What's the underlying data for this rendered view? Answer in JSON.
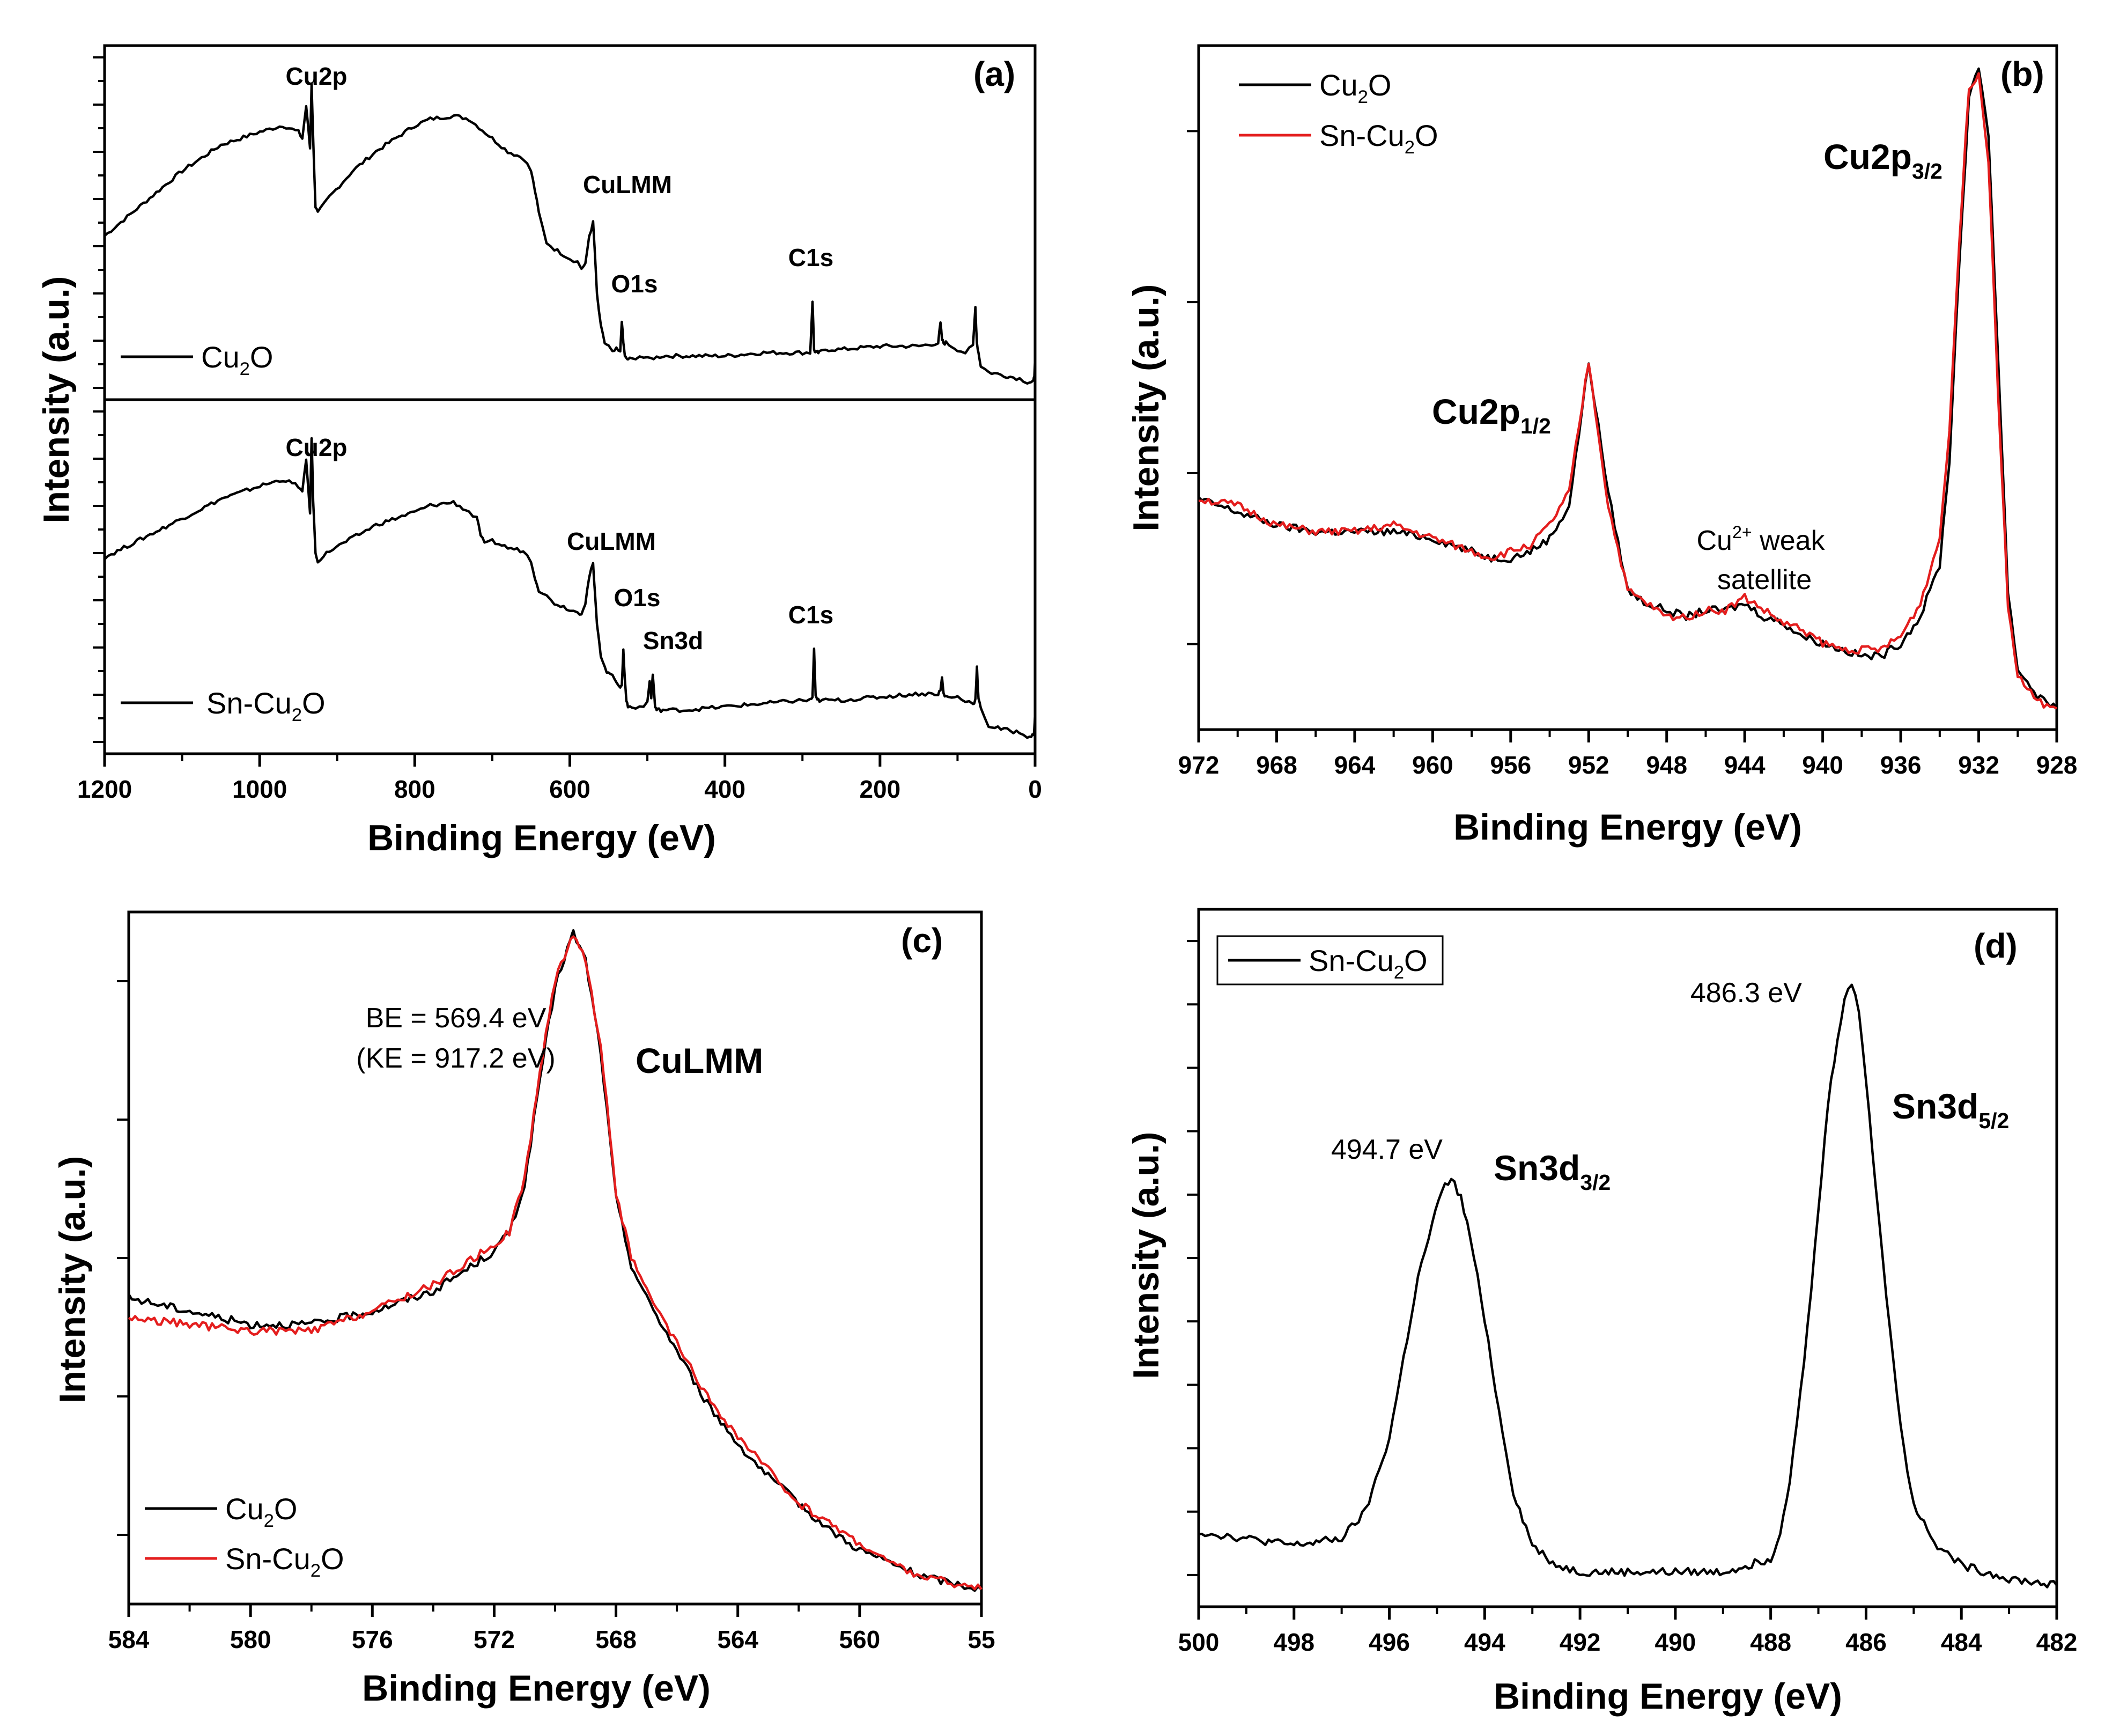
{
  "figure": {
    "colors": {
      "cu2o": "#000000",
      "sn_cu2o": "#e41e1e",
      "axis": "#000000"
    }
  },
  "chart_data": [
    {
      "panel": "a",
      "type": "line",
      "panel_label": "(a)",
      "xlabel": "Binding Energy (eV)",
      "ylabel": "Intensity (a.u.)",
      "xlim": [
        1200,
        0
      ],
      "xticks": [
        1200,
        1000,
        800,
        600,
        400,
        200,
        0
      ],
      "stacked": true,
      "series": [
        {
          "name": "Cu2O",
          "legend": {
            "base": "Cu",
            "sub": "2",
            "rest": "O"
          },
          "color": "#000000",
          "ylim": [
            0,
            100
          ],
          "x": [
            1200,
            1150,
            1100,
            1050,
            1000,
            970,
            950,
            945,
            940,
            935,
            933,
            931,
            928,
            925,
            910,
            880,
            850,
            800,
            780,
            750,
            730,
            700,
            680,
            660,
            650,
            645,
            640,
            630,
            620,
            600,
            590,
            585,
            580,
            575,
            570,
            568,
            565,
            560,
            555,
            550,
            545,
            540,
            535,
            533,
            531,
            529,
            527,
            525,
            520,
            510,
            500,
            480,
            450,
            400,
            350,
            300,
            290,
            287,
            285,
            283,
            281,
            278,
            270,
            250,
            200,
            150,
            125,
            122,
            120,
            118,
            115,
            100,
            90,
            80,
            77,
            75,
            73,
            70,
            60,
            40,
            20,
            10,
            5,
            2,
            1,
            0
          ],
          "values": [
            48,
            58,
            68,
            76,
            80,
            82,
            80,
            78,
            88,
            75,
            95,
            78,
            57,
            55,
            60,
            68,
            74,
            82,
            84,
            85,
            84,
            78,
            74,
            72,
            68,
            62,
            55,
            46,
            44,
            41,
            40,
            38,
            39,
            48,
            52,
            44,
            30,
            20,
            15,
            14,
            12,
            13,
            12,
            22,
            15,
            11,
            10,
            10,
            10,
            11,
            10,
            11,
            11,
            11,
            12,
            12,
            12,
            28,
            13,
            12,
            12,
            12,
            13,
            13,
            14,
            14,
            15,
            21,
            16,
            15,
            15,
            13,
            12,
            14,
            26,
            15,
            12,
            8,
            6,
            5,
            4,
            3,
            3,
            3,
            5,
            10
          ]
        },
        {
          "name": "Sn-Cu2O",
          "legend": {
            "base": "Sn-Cu",
            "sub": "2",
            "rest": "O"
          },
          "color": "#000000",
          "ylim": [
            0,
            100
          ],
          "x": [
            1200,
            1150,
            1100,
            1050,
            1000,
            970,
            950,
            945,
            940,
            935,
            933,
            931,
            928,
            925,
            910,
            880,
            850,
            800,
            780,
            750,
            730,
            720,
            715,
            710,
            700,
            680,
            660,
            650,
            645,
            640,
            630,
            620,
            600,
            590,
            585,
            580,
            575,
            570,
            568,
            565,
            560,
            555,
            550,
            545,
            540,
            535,
            533,
            531,
            529,
            527,
            525,
            520,
            510,
            500,
            497,
            495,
            493,
            490,
            488,
            485,
            480,
            450,
            400,
            350,
            300,
            290,
            287,
            285,
            283,
            281,
            278,
            270,
            250,
            200,
            150,
            125,
            122,
            120,
            118,
            115,
            100,
            90,
            80,
            77,
            75,
            73,
            70,
            60,
            40,
            20,
            10,
            5,
            2,
            1,
            0
          ],
          "values": [
            58,
            64,
            70,
            76,
            80,
            82,
            80,
            78,
            88,
            72,
            95,
            76,
            59,
            57,
            60,
            64,
            68,
            72,
            74,
            75,
            72,
            70,
            65,
            62,
            63,
            61,
            60,
            57,
            52,
            48,
            46,
            44,
            42,
            41,
            41,
            44,
            52,
            56,
            48,
            38,
            28,
            24,
            22,
            22,
            20,
            18,
            18,
            30,
            20,
            14,
            12,
            12,
            12,
            13,
            20,
            15,
            22,
            12,
            11,
            11,
            11,
            11,
            12,
            13,
            14,
            14,
            15,
            30,
            15,
            14,
            14,
            14,
            14,
            15,
            16,
            16,
            17,
            21,
            16,
            15,
            15,
            14,
            13,
            14,
            24,
            14,
            12,
            6,
            5,
            4,
            3,
            3,
            3,
            5,
            10
          ]
        }
      ],
      "annotations": {
        "top": [
          "Cu2p",
          "CuLMM",
          "O1s",
          "C1s"
        ],
        "bottom": [
          "Cu2p",
          "CuLMM",
          "O1s",
          "Sn3d",
          "C1s"
        ]
      }
    },
    {
      "panel": "b",
      "type": "line",
      "panel_label": "(b)",
      "xlabel": "Binding Energy (eV)",
      "ylabel": "Intensity (a.u.)",
      "xlim": [
        972,
        928
      ],
      "xticks": [
        972,
        968,
        964,
        960,
        956,
        952,
        948,
        944,
        940,
        936,
        932,
        928
      ],
      "ylim": [
        0,
        100
      ],
      "series": [
        {
          "name": "Cu2O",
          "legend": {
            "base": "Cu",
            "sub": "2",
            "rest": "O"
          },
          "color": "#000000",
          "x": [
            972,
            970,
            968,
            966,
            964,
            962,
            960,
            958,
            957,
            956,
            955,
            954,
            953,
            952.5,
            952,
            951.5,
            951,
            950,
            949,
            948,
            947,
            946,
            945,
            944,
            943,
            942,
            941,
            940,
            939,
            938,
            937,
            936,
            935,
            934,
            933.5,
            933,
            932.5,
            932,
            931.5,
            931,
            930.5,
            930,
            929,
            928
          ],
          "values": [
            34,
            32,
            30,
            29,
            29,
            29,
            28,
            26,
            25,
            25,
            26,
            28,
            33,
            44,
            55,
            45,
            35,
            20,
            18,
            17,
            16,
            17,
            17,
            18,
            16,
            15,
            13,
            12,
            11,
            10,
            10,
            12,
            16,
            24,
            40,
            70,
            95,
            100,
            90,
            55,
            20,
            8,
            4,
            2
          ]
        },
        {
          "name": "Sn-Cu2O",
          "legend": {
            "base": "Sn-Cu",
            "sub": "2",
            "rest": "O"
          },
          "color": "#e41e1e",
          "x": [
            972,
            970,
            968,
            966,
            964,
            962,
            960,
            958,
            957,
            956,
            955,
            954,
            953,
            952.5,
            952,
            951.5,
            951,
            950,
            949,
            948,
            947,
            946,
            945,
            944,
            943,
            942,
            941,
            940,
            939,
            938,
            937,
            936,
            935,
            934,
            933.5,
            933,
            932.5,
            932,
            931.5,
            931,
            930.5,
            930,
            929,
            928
          ],
          "values": [
            34,
            33,
            30,
            29,
            29,
            30,
            28,
            26,
            25,
            26,
            27,
            30,
            35,
            45,
            55,
            44,
            33,
            20,
            18,
            16,
            16,
            17,
            17,
            19,
            17,
            15,
            14,
            12,
            11,
            11,
            11,
            13,
            18,
            28,
            45,
            73,
            97,
            99,
            86,
            50,
            18,
            7,
            3,
            2
          ]
        }
      ],
      "annotations": {
        "p12": {
          "main": "Cu2p",
          "sub": "1/2"
        },
        "p32": {
          "main": "Cu2p",
          "sub": "3/2"
        },
        "satellite_line1": {
          "pre": "Cu",
          "sup": "2+",
          "post": " weak"
        },
        "satellite_line2": "satellite"
      }
    },
    {
      "panel": "c",
      "type": "line",
      "panel_label": "(c)",
      "xlabel": "Binding Energy (eV)",
      "ylabel": "Intensity (a.u.)",
      "xlim": [
        584,
        556
      ],
      "xticks": [
        584,
        580,
        576,
        572,
        568,
        564,
        560,
        "55"
      ],
      "ylim": [
        0,
        100
      ],
      "series": [
        {
          "name": "Cu2O",
          "legend": {
            "base": "Cu",
            "sub": "2",
            "rest": "O"
          },
          "color": "#000000",
          "x": [
            584,
            582,
            580,
            578,
            576,
            574,
            573,
            572,
            571.5,
            571,
            570.5,
            570,
            569.5,
            569.4,
            569,
            568.5,
            568,
            567.5,
            567,
            566,
            565,
            564,
            563,
            562,
            561,
            560,
            559,
            558,
            557,
            556
          ],
          "values": [
            45,
            43,
            41,
            41,
            43,
            46,
            49,
            52,
            55,
            62,
            78,
            92,
            99,
            100,
            96,
            82,
            60,
            50,
            45,
            37,
            29,
            23,
            18,
            14,
            10,
            7,
            5,
            3,
            2,
            1
          ]
        },
        {
          "name": "Sn-Cu2O",
          "legend": {
            "base": "Sn-Cu",
            "sub": "2",
            "rest": "O"
          },
          "color": "#e41e1e",
          "x": [
            584,
            582,
            580,
            578,
            576,
            574,
            573,
            572,
            571.5,
            571,
            570.5,
            570,
            569.5,
            569.4,
            569,
            568.5,
            568,
            567.5,
            567,
            566,
            565,
            564,
            563,
            562,
            561,
            560,
            559,
            558,
            557,
            556
          ],
          "values": [
            42,
            41,
            40,
            40,
            43,
            47,
            50,
            53,
            55,
            63,
            79,
            93,
            99,
            100,
            96,
            83,
            61,
            51,
            46,
            38,
            30,
            24,
            19,
            14,
            11,
            8,
            5,
            3,
            2,
            1
          ]
        }
      ],
      "annotations": {
        "be": "BE = 569.4 eV",
        "ke": "(KE = 917.2 eV)",
        "culmm": "CuLMM"
      }
    },
    {
      "panel": "d",
      "type": "line",
      "panel_label": "(d)",
      "xlabel": "Binding Energy (eV)",
      "ylabel": "Intensity (a.u.)",
      "xlim": [
        500,
        482
      ],
      "xticks": [
        500,
        498,
        496,
        494,
        492,
        490,
        488,
        486,
        484,
        482
      ],
      "ylim": [
        0,
        100
      ],
      "series": [
        {
          "name": "Sn-Cu2O",
          "legend": {
            "base": "Sn-Cu",
            "sub": "2",
            "rest": "O"
          },
          "color": "#000000",
          "x": [
            500,
            499,
            498,
            497,
            496.5,
            496,
            495.7,
            495.4,
            495.1,
            494.9,
            494.7,
            494.5,
            494.3,
            494,
            493.7,
            493.4,
            493,
            492.5,
            492,
            491,
            490,
            489,
            488,
            487.8,
            487.6,
            487.3,
            487,
            486.8,
            486.6,
            486.45,
            486.3,
            486.15,
            486,
            485.8,
            485.5,
            485.2,
            485,
            484.5,
            484,
            483,
            482
          ],
          "values": [
            10,
            9,
            8,
            9,
            13,
            24,
            36,
            48,
            56,
            61,
            63,
            60,
            54,
            42,
            28,
            16,
            8,
            5,
            4,
            4,
            4,
            4,
            6,
            10,
            18,
            35,
            58,
            74,
            84,
            90,
            92,
            88,
            78,
            62,
            40,
            22,
            14,
            8,
            5,
            3,
            2
          ]
        }
      ],
      "annotations": {
        "v1": "494.7 eV",
        "v2": "486.3 eV",
        "s32": {
          "main": "Sn3d",
          "sub": "3/2"
        },
        "s52": {
          "main": "Sn3d",
          "sub": "5/2"
        }
      }
    }
  ]
}
